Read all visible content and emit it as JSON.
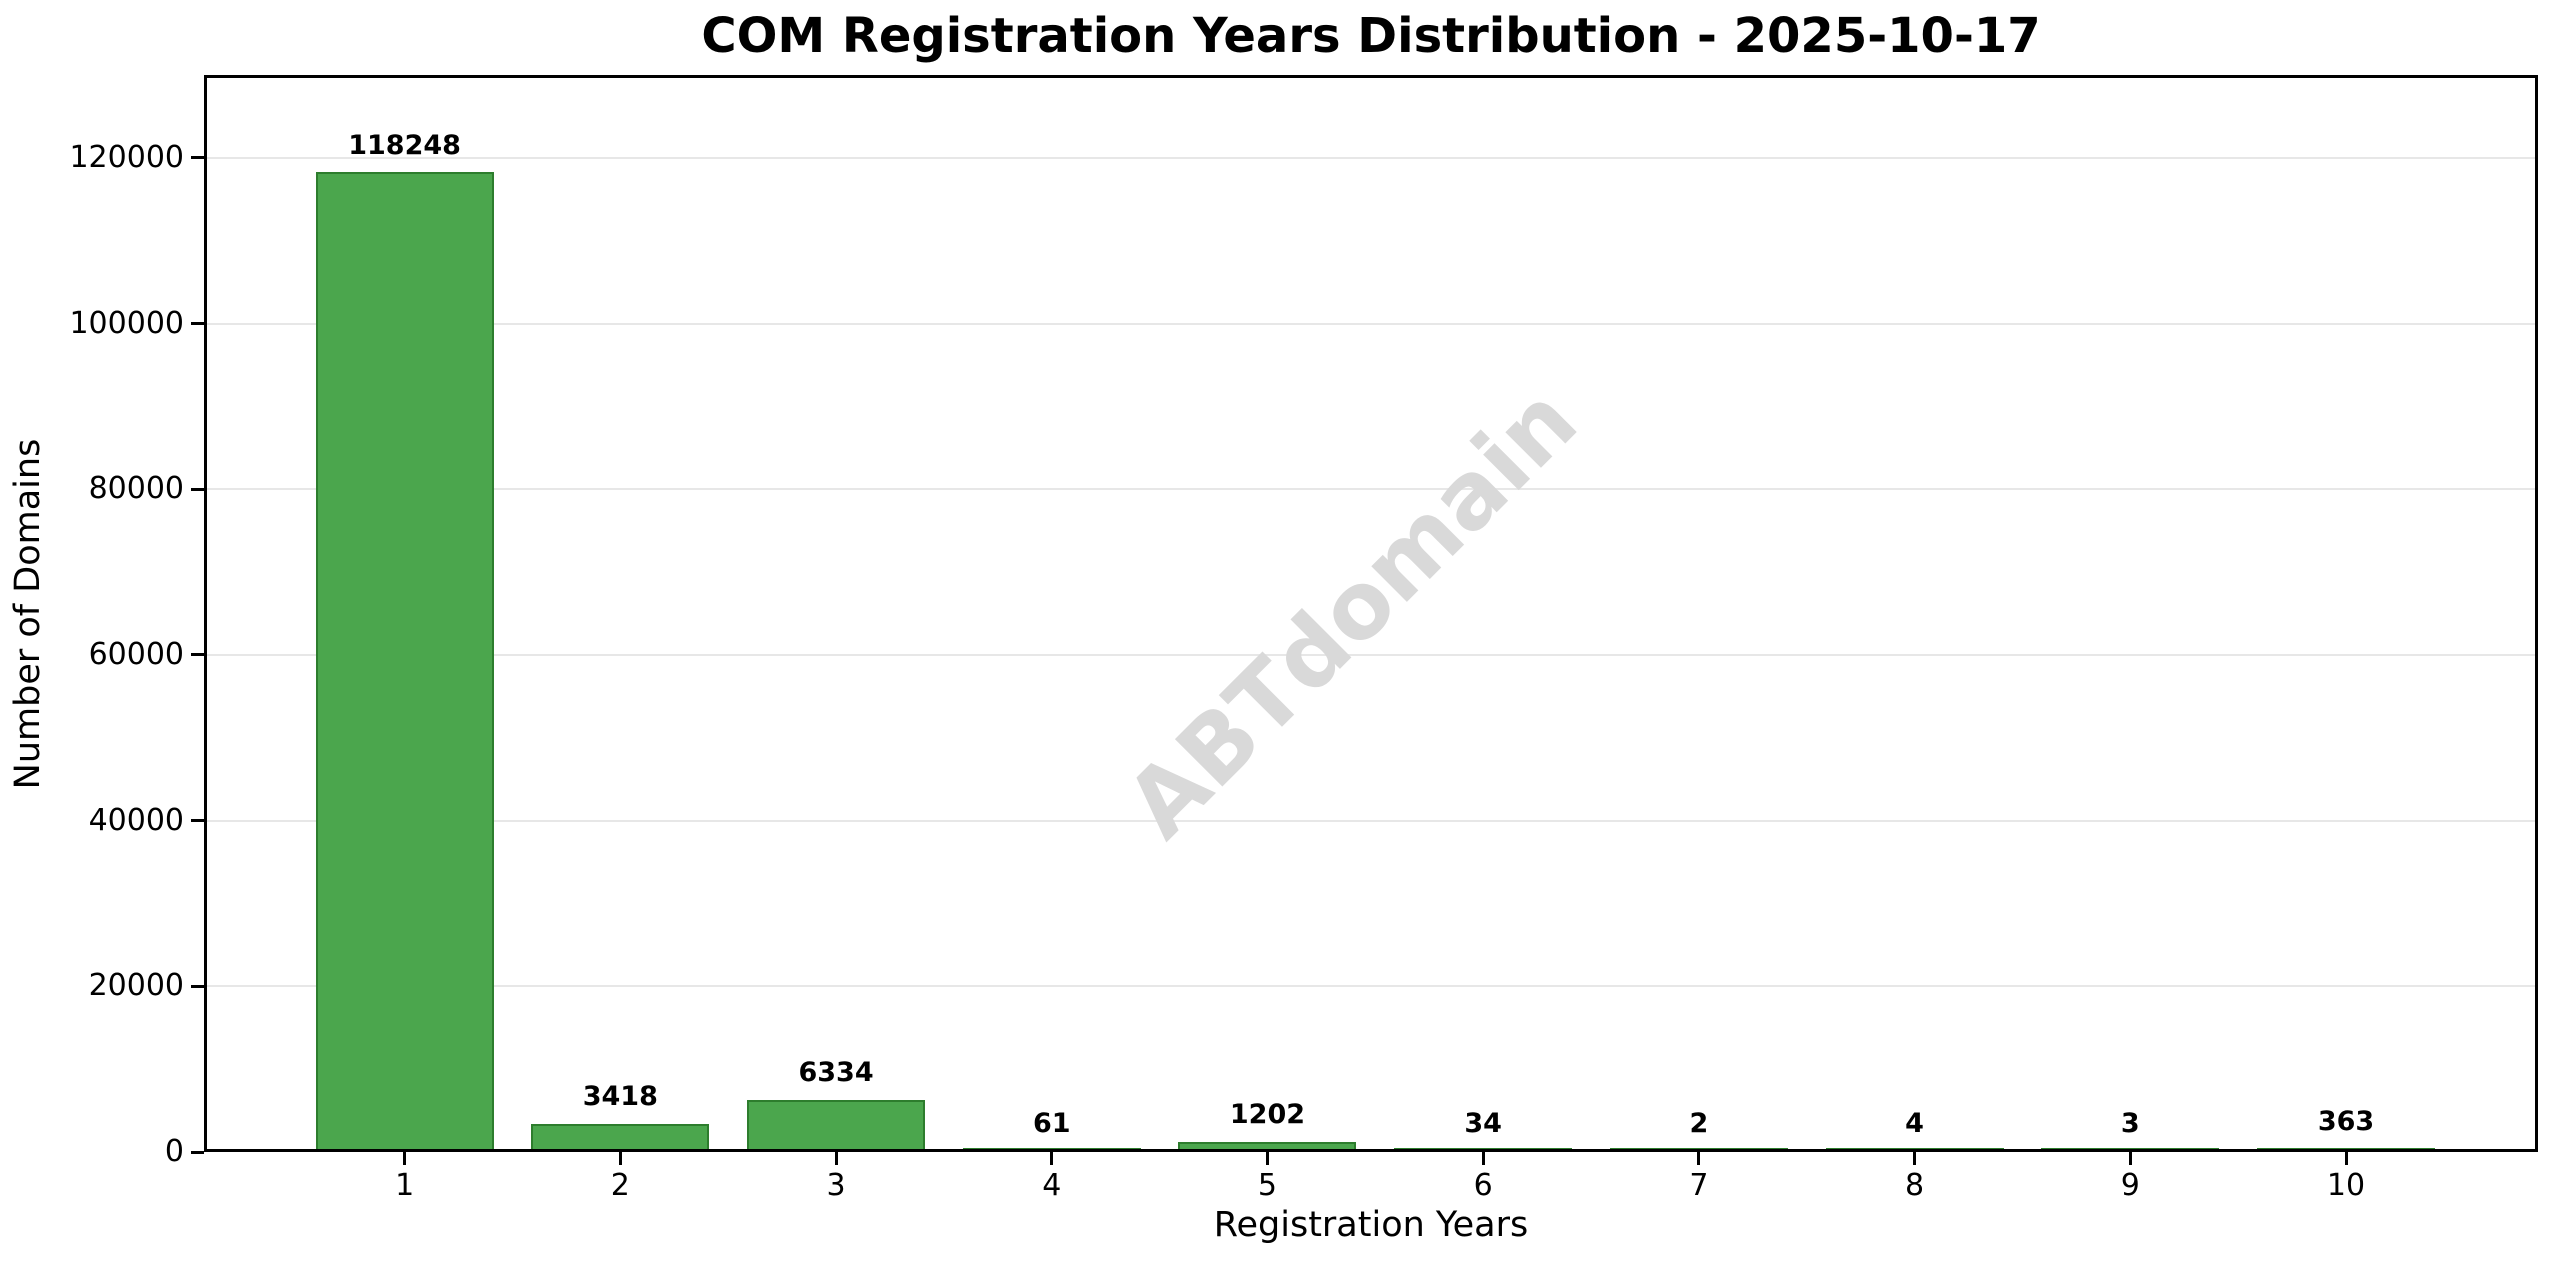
{
  "chart_data": {
    "type": "bar",
    "title": "COM Registration Years Distribution - 2025-10-17",
    "xlabel": "Registration Years",
    "ylabel": "Number of Domains",
    "categories": [
      "1",
      "2",
      "3",
      "4",
      "5",
      "6",
      "7",
      "8",
      "9",
      "10"
    ],
    "values": [
      118248,
      3418,
      6334,
      61,
      1202,
      34,
      2,
      4,
      3,
      363
    ],
    "bar_value_labels": [
      "118248",
      "3418",
      "6334",
      "61",
      "1202",
      "34",
      "2",
      "4",
      "3",
      "363"
    ],
    "yticks": [
      0,
      20000,
      40000,
      60000,
      80000,
      100000,
      120000
    ],
    "ylim": [
      0,
      130000
    ],
    "xlim": [
      0.07,
      10.89
    ],
    "bar_width_units": 0.825,
    "grid": "horizontal-only",
    "legend": "none",
    "colors": {
      "bar_fill": "#4BA64D",
      "bar_edge": "#2D7D2D",
      "grid_line": "#E7E7E7",
      "axis_line": "#000000",
      "title_text": "#000000",
      "watermark": "#D9D9D9"
    },
    "watermark": {
      "text": "ABTdomain",
      "rotation_deg": -45
    }
  }
}
